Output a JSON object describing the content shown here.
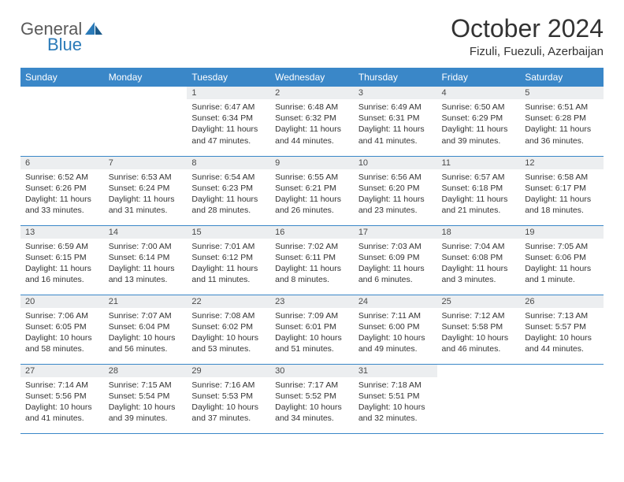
{
  "logo": {
    "part1": "General",
    "part2": "Blue"
  },
  "title": "October 2024",
  "location": "Fizuli, Fuezuli, Azerbaijan",
  "colors": {
    "header_bg": "#3a87c8",
    "header_text": "#ffffff",
    "daynum_bg": "#eceef0",
    "border": "#3a87c8",
    "logo_gray": "#5a5a5a",
    "logo_blue": "#2a7ab8"
  },
  "weekdays": [
    "Sunday",
    "Monday",
    "Tuesday",
    "Wednesday",
    "Thursday",
    "Friday",
    "Saturday"
  ],
  "weeks": [
    [
      {
        "empty": true
      },
      {
        "empty": true
      },
      {
        "d": "1",
        "sr": "Sunrise: 6:47 AM",
        "ss": "Sunset: 6:34 PM",
        "dl": "Daylight: 11 hours and 47 minutes."
      },
      {
        "d": "2",
        "sr": "Sunrise: 6:48 AM",
        "ss": "Sunset: 6:32 PM",
        "dl": "Daylight: 11 hours and 44 minutes."
      },
      {
        "d": "3",
        "sr": "Sunrise: 6:49 AM",
        "ss": "Sunset: 6:31 PM",
        "dl": "Daylight: 11 hours and 41 minutes."
      },
      {
        "d": "4",
        "sr": "Sunrise: 6:50 AM",
        "ss": "Sunset: 6:29 PM",
        "dl": "Daylight: 11 hours and 39 minutes."
      },
      {
        "d": "5",
        "sr": "Sunrise: 6:51 AM",
        "ss": "Sunset: 6:28 PM",
        "dl": "Daylight: 11 hours and 36 minutes."
      }
    ],
    [
      {
        "d": "6",
        "sr": "Sunrise: 6:52 AM",
        "ss": "Sunset: 6:26 PM",
        "dl": "Daylight: 11 hours and 33 minutes."
      },
      {
        "d": "7",
        "sr": "Sunrise: 6:53 AM",
        "ss": "Sunset: 6:24 PM",
        "dl": "Daylight: 11 hours and 31 minutes."
      },
      {
        "d": "8",
        "sr": "Sunrise: 6:54 AM",
        "ss": "Sunset: 6:23 PM",
        "dl": "Daylight: 11 hours and 28 minutes."
      },
      {
        "d": "9",
        "sr": "Sunrise: 6:55 AM",
        "ss": "Sunset: 6:21 PM",
        "dl": "Daylight: 11 hours and 26 minutes."
      },
      {
        "d": "10",
        "sr": "Sunrise: 6:56 AM",
        "ss": "Sunset: 6:20 PM",
        "dl": "Daylight: 11 hours and 23 minutes."
      },
      {
        "d": "11",
        "sr": "Sunrise: 6:57 AM",
        "ss": "Sunset: 6:18 PM",
        "dl": "Daylight: 11 hours and 21 minutes."
      },
      {
        "d": "12",
        "sr": "Sunrise: 6:58 AM",
        "ss": "Sunset: 6:17 PM",
        "dl": "Daylight: 11 hours and 18 minutes."
      }
    ],
    [
      {
        "d": "13",
        "sr": "Sunrise: 6:59 AM",
        "ss": "Sunset: 6:15 PM",
        "dl": "Daylight: 11 hours and 16 minutes."
      },
      {
        "d": "14",
        "sr": "Sunrise: 7:00 AM",
        "ss": "Sunset: 6:14 PM",
        "dl": "Daylight: 11 hours and 13 minutes."
      },
      {
        "d": "15",
        "sr": "Sunrise: 7:01 AM",
        "ss": "Sunset: 6:12 PM",
        "dl": "Daylight: 11 hours and 11 minutes."
      },
      {
        "d": "16",
        "sr": "Sunrise: 7:02 AM",
        "ss": "Sunset: 6:11 PM",
        "dl": "Daylight: 11 hours and 8 minutes."
      },
      {
        "d": "17",
        "sr": "Sunrise: 7:03 AM",
        "ss": "Sunset: 6:09 PM",
        "dl": "Daylight: 11 hours and 6 minutes."
      },
      {
        "d": "18",
        "sr": "Sunrise: 7:04 AM",
        "ss": "Sunset: 6:08 PM",
        "dl": "Daylight: 11 hours and 3 minutes."
      },
      {
        "d": "19",
        "sr": "Sunrise: 7:05 AM",
        "ss": "Sunset: 6:06 PM",
        "dl": "Daylight: 11 hours and 1 minute."
      }
    ],
    [
      {
        "d": "20",
        "sr": "Sunrise: 7:06 AM",
        "ss": "Sunset: 6:05 PM",
        "dl": "Daylight: 10 hours and 58 minutes."
      },
      {
        "d": "21",
        "sr": "Sunrise: 7:07 AM",
        "ss": "Sunset: 6:04 PM",
        "dl": "Daylight: 10 hours and 56 minutes."
      },
      {
        "d": "22",
        "sr": "Sunrise: 7:08 AM",
        "ss": "Sunset: 6:02 PM",
        "dl": "Daylight: 10 hours and 53 minutes."
      },
      {
        "d": "23",
        "sr": "Sunrise: 7:09 AM",
        "ss": "Sunset: 6:01 PM",
        "dl": "Daylight: 10 hours and 51 minutes."
      },
      {
        "d": "24",
        "sr": "Sunrise: 7:11 AM",
        "ss": "Sunset: 6:00 PM",
        "dl": "Daylight: 10 hours and 49 minutes."
      },
      {
        "d": "25",
        "sr": "Sunrise: 7:12 AM",
        "ss": "Sunset: 5:58 PM",
        "dl": "Daylight: 10 hours and 46 minutes."
      },
      {
        "d": "26",
        "sr": "Sunrise: 7:13 AM",
        "ss": "Sunset: 5:57 PM",
        "dl": "Daylight: 10 hours and 44 minutes."
      }
    ],
    [
      {
        "d": "27",
        "sr": "Sunrise: 7:14 AM",
        "ss": "Sunset: 5:56 PM",
        "dl": "Daylight: 10 hours and 41 minutes."
      },
      {
        "d": "28",
        "sr": "Sunrise: 7:15 AM",
        "ss": "Sunset: 5:54 PM",
        "dl": "Daylight: 10 hours and 39 minutes."
      },
      {
        "d": "29",
        "sr": "Sunrise: 7:16 AM",
        "ss": "Sunset: 5:53 PM",
        "dl": "Daylight: 10 hours and 37 minutes."
      },
      {
        "d": "30",
        "sr": "Sunrise: 7:17 AM",
        "ss": "Sunset: 5:52 PM",
        "dl": "Daylight: 10 hours and 34 minutes."
      },
      {
        "d": "31",
        "sr": "Sunrise: 7:18 AM",
        "ss": "Sunset: 5:51 PM",
        "dl": "Daylight: 10 hours and 32 minutes."
      },
      {
        "empty": true
      },
      {
        "empty": true
      }
    ]
  ]
}
